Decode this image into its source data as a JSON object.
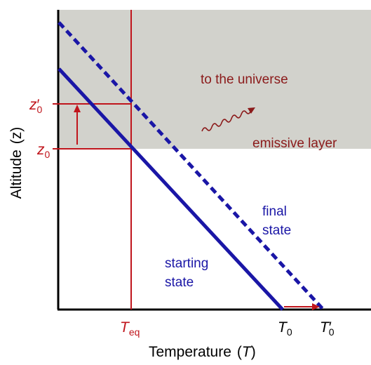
{
  "colors": {
    "shade": "#d2d2cc",
    "axis": "#000000",
    "red": "#c0151c",
    "blue": "#1a16a6",
    "dark_red": "#8b1a1a"
  },
  "labels": {
    "universe": "to the universe",
    "emissive": "emissive layer",
    "final_line1": "final",
    "final_line2": "state",
    "start_line1": "starting",
    "start_line2": "state",
    "z0_prime_base": "z",
    "z0_prime_mark": "′",
    "z0_prime_sub": "0",
    "z0_base": "z",
    "z0_sub": "0",
    "teq_base": "T",
    "teq_sub": "eq",
    "t0_base": "T",
    "t0_sub": "0",
    "t0_prime_base": "T",
    "t0_prime_mark": "′",
    "t0_prime_sub": "0"
  },
  "axes": {
    "x_title": "Temperature",
    "x_title_symbol_open": "(",
    "x_title_symbol": "T",
    "x_title_symbol_close": ")",
    "y_title": "Altitude",
    "y_title_symbol": "(z)"
  }
}
